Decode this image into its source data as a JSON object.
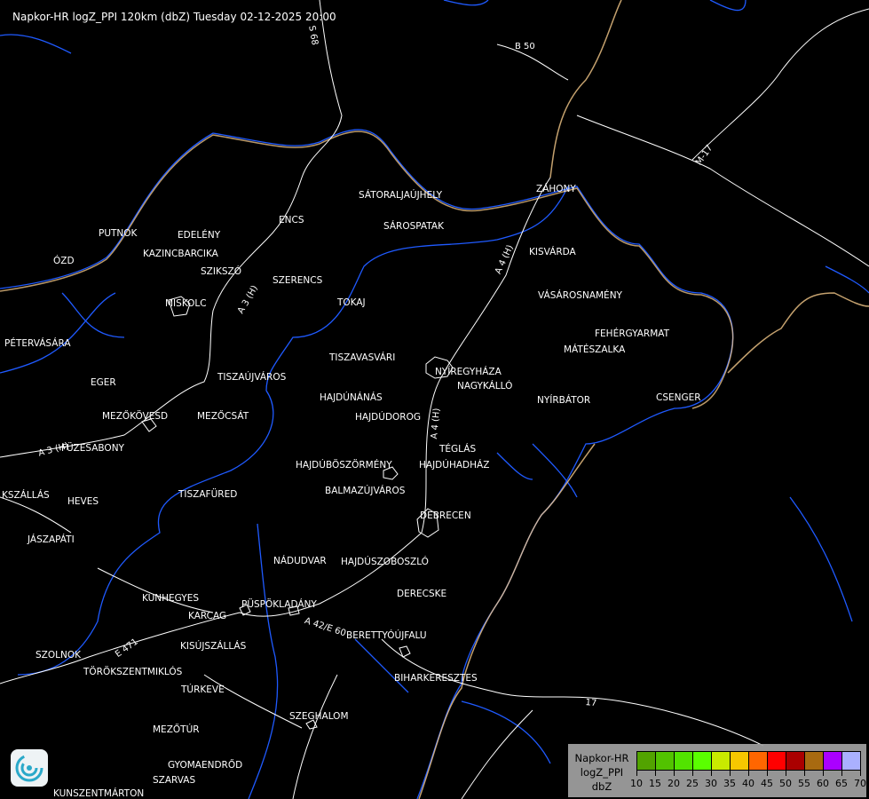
{
  "title": "Napkor-HR logZ_PPI 120km (dbZ) Tuesday 02-12-2025 20:00",
  "cities": [
    "SÁTORALJAÚJHELY",
    "ZÁHONY",
    "SÁROSPATAK",
    "ENCS",
    "PUTNOK",
    "EDELÉNY",
    "KAZINCBARCIKA",
    "ÓZD",
    "SZIKSZÓ",
    "SZERENCS",
    "KISVÁRDA",
    "MISKOLC",
    "TOKAJ",
    "VÁSÁROSNAMÉNY",
    "PÉTERVÁSÁRA",
    "FEHÉRGYARMAT",
    "MÁTÉSZALKA",
    "TISZAVASVÁRI",
    "NYÍREGYHÁZA",
    "EGER",
    "TISZAÚJVÁROS",
    "NAGYKÁLLÓ",
    "HAJDÚNÁNÁS",
    "NYÍRBÁTOR",
    "CSENGER",
    "MEZŐKÖVESD",
    "MEZŐCSÁT",
    "HAJDÚDOROG",
    "FÜZESABONY",
    "TÉGLÁS",
    "HAJDÚBÖSZÖRMÉNY",
    "HAJDÚHADHÁZ",
    "BALMAZÚJVÁROS",
    "KSZÁLLÁS",
    "TISZAFÜRED",
    "HEVES",
    "DEBRECEN",
    "JÁSZAPÁTI",
    "NÁDUDVAR",
    "HAJDÚSZOBOSZLÓ",
    "DERECSKE",
    "KUNHEGYES",
    "KARCAG",
    "PÜSPÖKLADÁNY",
    "BERETTYÓÚJFALU",
    "KISÚJSZÁLLÁS",
    "SZOLNOK",
    "TÖRÖKSZENTMIKLÓS",
    "BIHARKERESZTES",
    "TÚRKEVE",
    "SZEGHALOM",
    "MEZŐTÚR",
    "GYOMAENDRŐD",
    "SZARVAS",
    "KUNSZENTMÁRTON"
  ],
  "roads": [
    "S 68",
    "B 50",
    "M-17",
    "A 4 (H)",
    "A 3 (H)",
    "A 3 (H)",
    "A 4 (H)",
    "A 42/E 60",
    "E 471",
    "17"
  ],
  "legend": {
    "line1": "Napkor-HR",
    "line2": "logZ_PPI",
    "line3": "dbZ",
    "ticks": [
      "10",
      "15",
      "20",
      "25",
      "30",
      "35",
      "40",
      "45",
      "50",
      "55",
      "60",
      "65",
      "70"
    ],
    "colors": [
      "#52a300",
      "#52c300",
      "#52e300",
      "#5aff00",
      "#c8ea00",
      "#f7c700",
      "#ff6600",
      "#ff0000",
      "#aa0000",
      "#a86a10",
      "#aa00ff",
      "#aab0ff"
    ]
  },
  "colors": {
    "background": "#000000",
    "rivers": "#1f5aff",
    "border": "#f5c98a",
    "roads": "#ffffff"
  },
  "logo": {
    "icon": "swirl-logo-icon"
  }
}
